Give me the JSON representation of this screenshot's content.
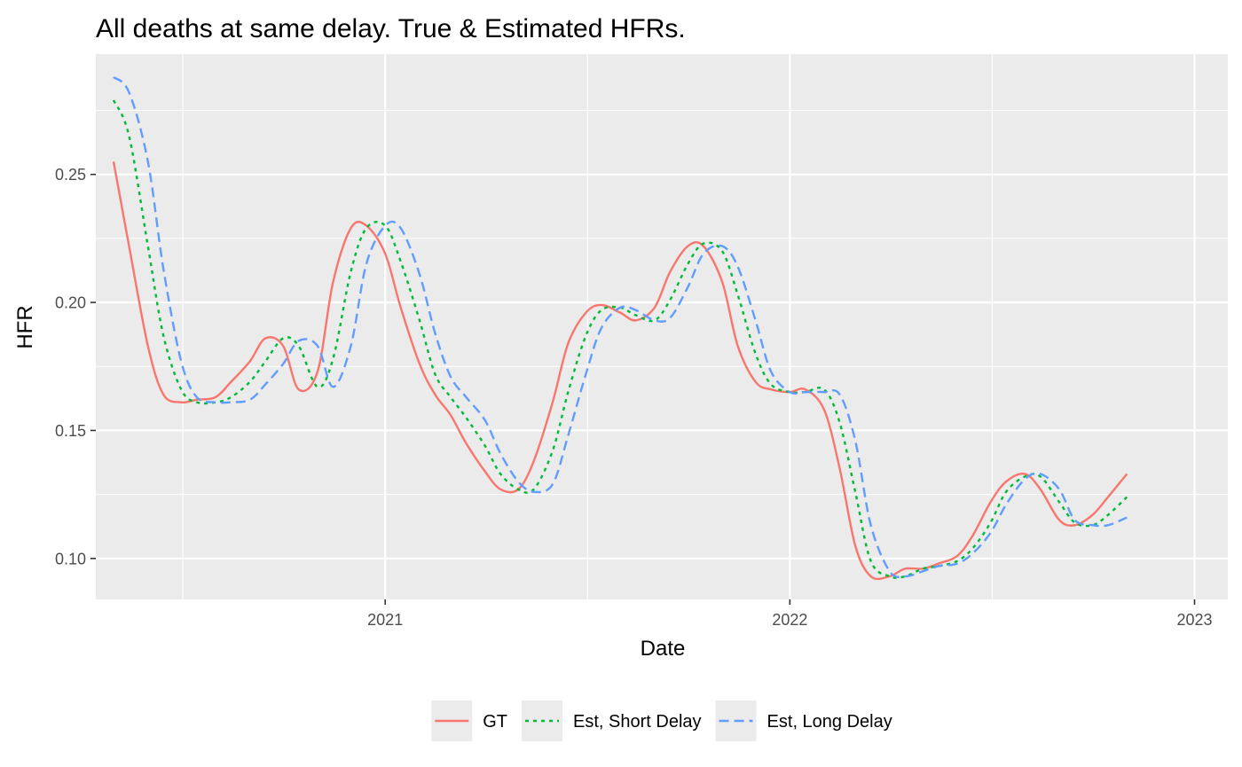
{
  "chart_data": {
    "type": "line",
    "title": "All deaths at same delay. True & Estimated HFRs.",
    "xlabel": "Date",
    "ylabel": "HFR",
    "xlim": [
      "2020-04-15",
      "2023-01-31"
    ],
    "ylim": [
      0.084,
      0.297
    ],
    "x_ticks": [
      "2021-01-01",
      "2022-01-01",
      "2023-01-01"
    ],
    "x_tick_labels": [
      "2021",
      "2022",
      "2023"
    ],
    "y_ticks": [
      0.1,
      0.15,
      0.2,
      0.25
    ],
    "y_tick_labels": [
      "0.10",
      "0.15",
      "0.20",
      "0.25"
    ],
    "grid": true,
    "legend_position": "bottom",
    "series": [
      {
        "name": "GT",
        "color": "#F8766D",
        "dash": "solid",
        "points": [
          [
            "2020-05-01",
            0.255
          ],
          [
            "2020-05-15",
            0.222
          ],
          [
            "2020-06-01",
            0.183
          ],
          [
            "2020-06-15",
            0.164
          ],
          [
            "2020-07-01",
            0.161
          ],
          [
            "2020-07-15",
            0.162
          ],
          [
            "2020-08-01",
            0.163
          ],
          [
            "2020-08-15",
            0.169
          ],
          [
            "2020-09-01",
            0.177
          ],
          [
            "2020-09-15",
            0.186
          ],
          [
            "2020-10-01",
            0.183
          ],
          [
            "2020-10-15",
            0.166
          ],
          [
            "2020-11-01",
            0.173
          ],
          [
            "2020-11-15",
            0.208
          ],
          [
            "2020-12-01",
            0.229
          ],
          [
            "2020-12-15",
            0.23
          ],
          [
            "2021-01-01",
            0.219
          ],
          [
            "2021-01-15",
            0.198
          ],
          [
            "2021-02-01",
            0.176
          ],
          [
            "2021-02-15",
            0.164
          ],
          [
            "2021-03-01",
            0.156
          ],
          [
            "2021-03-15",
            0.145
          ],
          [
            "2021-04-01",
            0.134
          ],
          [
            "2021-04-15",
            0.127
          ],
          [
            "2021-05-01",
            0.127
          ],
          [
            "2021-05-15",
            0.138
          ],
          [
            "2021-06-01",
            0.161
          ],
          [
            "2021-06-15",
            0.184
          ],
          [
            "2021-07-01",
            0.196
          ],
          [
            "2021-07-15",
            0.199
          ],
          [
            "2021-08-01",
            0.196
          ],
          [
            "2021-08-15",
            0.193
          ],
          [
            "2021-09-01",
            0.198
          ],
          [
            "2021-09-15",
            0.212
          ],
          [
            "2021-10-01",
            0.222
          ],
          [
            "2021-10-15",
            0.222
          ],
          [
            "2021-11-01",
            0.208
          ],
          [
            "2021-11-15",
            0.183
          ],
          [
            "2021-12-01",
            0.169
          ],
          [
            "2021-12-15",
            0.166
          ],
          [
            "2022-01-01",
            0.165
          ],
          [
            "2022-01-15",
            0.166
          ],
          [
            "2022-02-01",
            0.158
          ],
          [
            "2022-02-15",
            0.135
          ],
          [
            "2022-03-01",
            0.105
          ],
          [
            "2022-03-15",
            0.093
          ],
          [
            "2022-04-01",
            0.093
          ],
          [
            "2022-04-15",
            0.096
          ],
          [
            "2022-05-01",
            0.096
          ],
          [
            "2022-05-15",
            0.098
          ],
          [
            "2022-06-01",
            0.101
          ],
          [
            "2022-06-15",
            0.109
          ],
          [
            "2022-07-01",
            0.122
          ],
          [
            "2022-07-15",
            0.13
          ],
          [
            "2022-08-01",
            0.133
          ],
          [
            "2022-08-15",
            0.127
          ],
          [
            "2022-09-01",
            0.115
          ],
          [
            "2022-09-15",
            0.113
          ],
          [
            "2022-10-01",
            0.117
          ],
          [
            "2022-10-15",
            0.124
          ],
          [
            "2022-11-01",
            0.133
          ]
        ]
      },
      {
        "name": "Est, Short Delay",
        "color": "#00BA38",
        "dash": "dotted",
        "points": [
          [
            "2020-05-01",
            0.279
          ],
          [
            "2020-05-15",
            0.265
          ],
          [
            "2020-06-01",
            0.222
          ],
          [
            "2020-06-15",
            0.187
          ],
          [
            "2020-07-01",
            0.166
          ],
          [
            "2020-07-15",
            0.161
          ],
          [
            "2020-08-01",
            0.161
          ],
          [
            "2020-08-15",
            0.163
          ],
          [
            "2020-09-01",
            0.169
          ],
          [
            "2020-09-15",
            0.177
          ],
          [
            "2020-10-01",
            0.186
          ],
          [
            "2020-10-15",
            0.183
          ],
          [
            "2020-11-01",
            0.167
          ],
          [
            "2020-11-15",
            0.178
          ],
          [
            "2020-12-01",
            0.212
          ],
          [
            "2020-12-15",
            0.229
          ],
          [
            "2021-01-01",
            0.23
          ],
          [
            "2021-01-15",
            0.216
          ],
          [
            "2021-02-01",
            0.193
          ],
          [
            "2021-02-15",
            0.172
          ],
          [
            "2021-03-01",
            0.163
          ],
          [
            "2021-03-15",
            0.155
          ],
          [
            "2021-04-01",
            0.144
          ],
          [
            "2021-04-15",
            0.133
          ],
          [
            "2021-05-01",
            0.127
          ],
          [
            "2021-05-15",
            0.127
          ],
          [
            "2021-06-01",
            0.142
          ],
          [
            "2021-06-15",
            0.165
          ],
          [
            "2021-07-01",
            0.187
          ],
          [
            "2021-07-15",
            0.197
          ],
          [
            "2021-08-01",
            0.198
          ],
          [
            "2021-08-15",
            0.195
          ],
          [
            "2021-09-01",
            0.193
          ],
          [
            "2021-09-15",
            0.201
          ],
          [
            "2021-10-01",
            0.215
          ],
          [
            "2021-10-15",
            0.223
          ],
          [
            "2021-11-01",
            0.22
          ],
          [
            "2021-11-15",
            0.203
          ],
          [
            "2021-12-01",
            0.18
          ],
          [
            "2021-12-15",
            0.168
          ],
          [
            "2022-01-01",
            0.165
          ],
          [
            "2022-01-15",
            0.165
          ],
          [
            "2022-02-01",
            0.166
          ],
          [
            "2022-02-15",
            0.153
          ],
          [
            "2022-03-01",
            0.126
          ],
          [
            "2022-03-15",
            0.099
          ],
          [
            "2022-04-01",
            0.093
          ],
          [
            "2022-04-15",
            0.093
          ],
          [
            "2022-05-01",
            0.096
          ],
          [
            "2022-05-15",
            0.097
          ],
          [
            "2022-06-01",
            0.099
          ],
          [
            "2022-06-15",
            0.104
          ],
          [
            "2022-07-01",
            0.114
          ],
          [
            "2022-07-15",
            0.126
          ],
          [
            "2022-08-01",
            0.132
          ],
          [
            "2022-08-15",
            0.132
          ],
          [
            "2022-09-01",
            0.122
          ],
          [
            "2022-09-15",
            0.114
          ],
          [
            "2022-10-01",
            0.113
          ],
          [
            "2022-10-15",
            0.117
          ],
          [
            "2022-11-01",
            0.124
          ]
        ]
      },
      {
        "name": "Est, Long Delay",
        "color": "#619CFF",
        "dash": "dashed",
        "points": [
          [
            "2020-05-01",
            0.288
          ],
          [
            "2020-05-15",
            0.282
          ],
          [
            "2020-06-01",
            0.255
          ],
          [
            "2020-06-15",
            0.213
          ],
          [
            "2020-07-01",
            0.177
          ],
          [
            "2020-07-15",
            0.163
          ],
          [
            "2020-08-01",
            0.161
          ],
          [
            "2020-08-15",
            0.161
          ],
          [
            "2020-09-01",
            0.162
          ],
          [
            "2020-09-15",
            0.168
          ],
          [
            "2020-10-01",
            0.176
          ],
          [
            "2020-10-15",
            0.185
          ],
          [
            "2020-11-01",
            0.183
          ],
          [
            "2020-11-15",
            0.167
          ],
          [
            "2020-12-01",
            0.183
          ],
          [
            "2020-12-15",
            0.215
          ],
          [
            "2021-01-01",
            0.23
          ],
          [
            "2021-01-15",
            0.229
          ],
          [
            "2021-02-01",
            0.211
          ],
          [
            "2021-02-15",
            0.188
          ],
          [
            "2021-03-01",
            0.171
          ],
          [
            "2021-03-15",
            0.163
          ],
          [
            "2021-04-01",
            0.154
          ],
          [
            "2021-04-15",
            0.141
          ],
          [
            "2021-05-01",
            0.13
          ],
          [
            "2021-05-15",
            0.126
          ],
          [
            "2021-06-01",
            0.129
          ],
          [
            "2021-06-15",
            0.148
          ],
          [
            "2021-07-01",
            0.172
          ],
          [
            "2021-07-15",
            0.19
          ],
          [
            "2021-08-01",
            0.198
          ],
          [
            "2021-08-15",
            0.197
          ],
          [
            "2021-09-01",
            0.193
          ],
          [
            "2021-09-15",
            0.194
          ],
          [
            "2021-10-01",
            0.206
          ],
          [
            "2021-10-15",
            0.219
          ],
          [
            "2021-11-01",
            0.222
          ],
          [
            "2021-11-15",
            0.214
          ],
          [
            "2021-12-01",
            0.193
          ],
          [
            "2021-12-15",
            0.173
          ],
          [
            "2022-01-01",
            0.165
          ],
          [
            "2022-01-15",
            0.165
          ],
          [
            "2022-02-01",
            0.165
          ],
          [
            "2022-02-15",
            0.164
          ],
          [
            "2022-03-01",
            0.146
          ],
          [
            "2022-03-15",
            0.113
          ],
          [
            "2022-04-01",
            0.095
          ],
          [
            "2022-04-15",
            0.093
          ],
          [
            "2022-05-01",
            0.095
          ],
          [
            "2022-05-15",
            0.097
          ],
          [
            "2022-06-01",
            0.098
          ],
          [
            "2022-06-15",
            0.102
          ],
          [
            "2022-07-01",
            0.11
          ],
          [
            "2022-07-15",
            0.121
          ],
          [
            "2022-08-01",
            0.131
          ],
          [
            "2022-08-15",
            0.133
          ],
          [
            "2022-09-01",
            0.127
          ],
          [
            "2022-09-15",
            0.115
          ],
          [
            "2022-10-01",
            0.113
          ],
          [
            "2022-10-15",
            0.113
          ],
          [
            "2022-11-01",
            0.116
          ]
        ]
      }
    ]
  }
}
